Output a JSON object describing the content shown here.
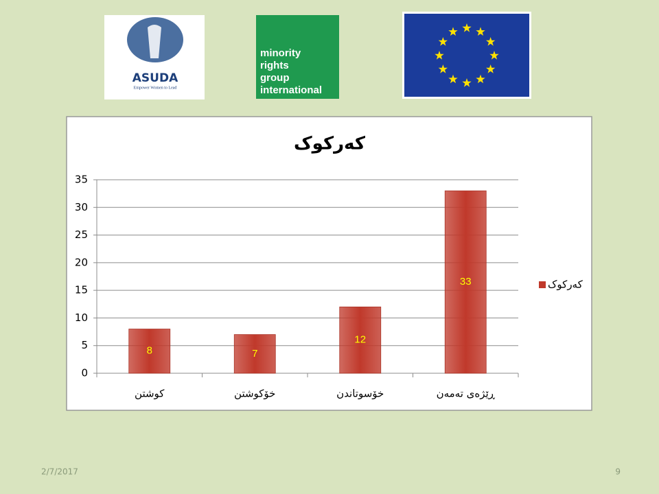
{
  "logos": {
    "asuda_name": "ASUDA",
    "asuda_tagline": "Empower Women to Lead",
    "mrg_lines": [
      "minority",
      "rights",
      "group",
      "international"
    ]
  },
  "chart_data": {
    "type": "bar",
    "title": "کەرکوک",
    "categories": [
      "کوشتن",
      "خۆکوشتن",
      "خۆسوتاندن",
      "ڕێژەی تەمەن"
    ],
    "series": [
      {
        "name": "کەرکوک",
        "color": "#c0392b",
        "values": [
          8,
          7,
          12,
          33
        ]
      }
    ],
    "ylim": [
      0,
      35
    ],
    "yticks": [
      0,
      5,
      10,
      15,
      20,
      25,
      30,
      35
    ],
    "grid": true,
    "legend": "right"
  },
  "footer": {
    "date": "2/7/2017",
    "page": "9"
  }
}
